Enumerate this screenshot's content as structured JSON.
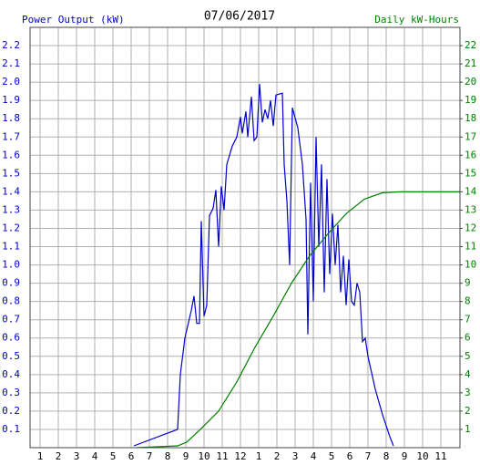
{
  "chart_data": {
    "type": "line",
    "title": "07/06/2017",
    "xlim": [
      0.45,
      24.05
    ],
    "xticks": [
      1,
      2,
      3,
      4,
      5,
      6,
      7,
      8,
      9,
      10,
      11,
      12,
      {
        "value": 13,
        "label": "1"
      },
      {
        "value": 14,
        "label": "2"
      },
      {
        "value": 15,
        "label": "3"
      },
      {
        "value": 16,
        "label": "4"
      },
      {
        "value": 17,
        "label": "5"
      },
      {
        "value": 18,
        "label": "6"
      },
      {
        "value": 19,
        "label": "7"
      },
      {
        "value": 20,
        "label": "8"
      },
      {
        "value": 21,
        "label": "9"
      },
      {
        "value": 22,
        "label": "10"
      },
      {
        "value": 23,
        "label": "11"
      }
    ],
    "ylim": [
      0,
      2.3
    ],
    "yticks": [
      0.1,
      0.2,
      0.3,
      0.4,
      0.5,
      0.6,
      0.7,
      0.8,
      0.9,
      {
        "value": 1,
        "label": "1.0"
      },
      1.1,
      1.2,
      1.3,
      1.4,
      1.5,
      1.6,
      1.7,
      1.8,
      1.9,
      {
        "value": 2,
        "label": "2.0"
      },
      2.1,
      2.2
    ],
    "y2lim": [
      0,
      23
    ],
    "y2ticks": [
      1,
      2,
      3,
      4,
      5,
      6,
      7,
      8,
      9,
      10,
      11,
      12,
      13,
      14,
      15,
      16,
      17,
      18,
      19,
      20,
      21,
      22
    ],
    "grid": true,
    "series": [
      {
        "name": "Power Output (kW)",
        "color": "#0000cc",
        "x": [
          6.15,
          8.55,
          8.7,
          8.95,
          9.3,
          9.45,
          9.6,
          9.75,
          9.85,
          10.0,
          10.15,
          10.3,
          10.5,
          10.65,
          10.8,
          10.95,
          11.1,
          11.25,
          11.55,
          11.8,
          12.0,
          12.1,
          12.3,
          12.4,
          12.6,
          12.75,
          12.9,
          13.05,
          13.2,
          13.35,
          13.5,
          13.65,
          13.8,
          13.95,
          14.3,
          14.4,
          14.55,
          14.7,
          14.85,
          15.15,
          15.4,
          15.6,
          15.7,
          15.85,
          16.0,
          16.15,
          16.3,
          16.45,
          16.6,
          16.75,
          16.9,
          17.05,
          17.2,
          17.35,
          17.5,
          17.65,
          17.8,
          17.95,
          18.1,
          18.25,
          18.4,
          18.55,
          18.7,
          18.85,
          19.0,
          19.4,
          19.8,
          20.2,
          20.4
        ],
        "values": [
          0.01,
          0.1,
          0.4,
          0.6,
          0.75,
          0.83,
          0.68,
          0.68,
          1.24,
          0.72,
          0.78,
          1.27,
          1.31,
          1.41,
          1.1,
          1.43,
          1.3,
          1.55,
          1.65,
          1.7,
          1.81,
          1.72,
          1.84,
          1.7,
          1.92,
          1.68,
          1.7,
          1.99,
          1.78,
          1.85,
          1.8,
          1.9,
          1.76,
          1.93,
          1.94,
          1.55,
          1.35,
          1.0,
          1.86,
          1.75,
          1.55,
          1.25,
          0.62,
          1.45,
          0.8,
          1.7,
          1.1,
          1.55,
          0.85,
          1.47,
          0.95,
          1.28,
          1.0,
          1.22,
          0.85,
          1.05,
          0.78,
          1.03,
          0.8,
          0.78,
          0.9,
          0.85,
          0.58,
          0.6,
          0.5,
          0.32,
          0.18,
          0.06,
          0.01
        ]
      },
      {
        "name": "Daily kW-Hours",
        "color": "#008000",
        "axis": "y2",
        "x": [
          6.3,
          8.55,
          9.05,
          9.8,
          10.8,
          11.8,
          12.8,
          13.8,
          14.8,
          15.8,
          16.8,
          17.8,
          18.8,
          19.8,
          20.8,
          24.05
        ],
        "values": [
          0,
          0.1,
          0.3,
          1.0,
          2.0,
          3.6,
          5.5,
          7.2,
          9.0,
          10.5,
          11.7,
          12.8,
          13.6,
          13.95,
          14.0,
          14.0
        ]
      }
    ]
  }
}
